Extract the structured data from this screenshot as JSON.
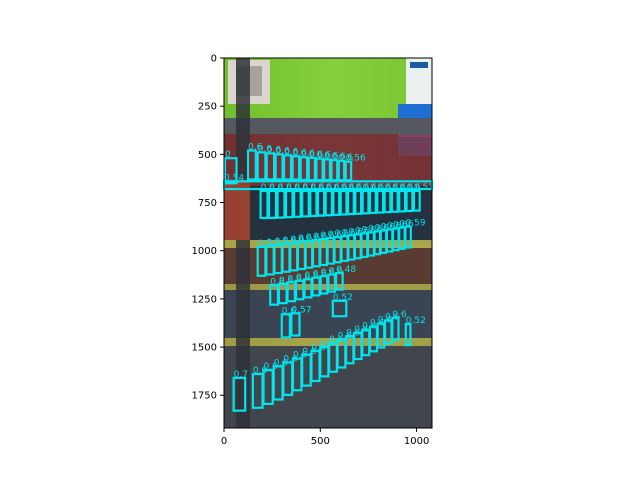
{
  "figure": {
    "colors": {
      "box": "#00e5ee",
      "label": "#00e5ee",
      "wall_green": "#7fc83a",
      "shelf_dark": "#3a3f45"
    },
    "image_desc_hidden": "",
    "axes": {
      "x": {
        "min": 0,
        "max": 1080,
        "ticks": [
          "0",
          "500",
          "1000"
        ],
        "tick_values": [
          0,
          500,
          1000
        ]
      },
      "y": {
        "min": 0,
        "max": 1920,
        "inverted": true,
        "ticks": [
          "0",
          "250",
          "500",
          "750",
          "1000",
          "1250",
          "1500",
          "1750"
        ],
        "tick_values": [
          0,
          250,
          500,
          750,
          1000,
          1250,
          1500,
          1750
        ]
      }
    },
    "detections": [
      {
        "x": 5,
        "y": 520,
        "w": 60,
        "h": 130,
        "label": "0"
      },
      {
        "x": 125,
        "y": 480,
        "w": 40,
        "h": 150,
        "label": "0.6"
      },
      {
        "x": 175,
        "y": 490,
        "w": 40,
        "h": 140,
        "label": "0.6"
      },
      {
        "x": 222,
        "y": 495,
        "w": 38,
        "h": 135,
        "label": "0.6"
      },
      {
        "x": 268,
        "y": 500,
        "w": 36,
        "h": 130,
        "label": "0.6"
      },
      {
        "x": 312,
        "y": 505,
        "w": 36,
        "h": 125,
        "label": "0.6"
      },
      {
        "x": 356,
        "y": 510,
        "w": 34,
        "h": 120,
        "label": "0.6"
      },
      {
        "x": 398,
        "y": 515,
        "w": 34,
        "h": 118,
        "label": "0.6"
      },
      {
        "x": 440,
        "y": 518,
        "w": 32,
        "h": 116,
        "label": "0.6"
      },
      {
        "x": 480,
        "y": 522,
        "w": 32,
        "h": 112,
        "label": "0.6"
      },
      {
        "x": 520,
        "y": 526,
        "w": 30,
        "h": 108,
        "label": "0.6"
      },
      {
        "x": 558,
        "y": 530,
        "w": 30,
        "h": 104,
        "label": "0.6"
      },
      {
        "x": 596,
        "y": 534,
        "w": 28,
        "h": 100,
        "label": "0.6"
      },
      {
        "x": 632,
        "y": 538,
        "w": 28,
        "h": 96,
        "label": "0.56"
      },
      {
        "x": 0,
        "y": 640,
        "w": 1080,
        "h": 40,
        "label": "0.54"
      },
      {
        "x": 190,
        "y": 690,
        "w": 36,
        "h": 140,
        "label": "0.6"
      },
      {
        "x": 234,
        "y": 690,
        "w": 36,
        "h": 140,
        "label": "0.6"
      },
      {
        "x": 278,
        "y": 690,
        "w": 36,
        "h": 138,
        "label": "0.6"
      },
      {
        "x": 322,
        "y": 690,
        "w": 34,
        "h": 136,
        "label": "0.6"
      },
      {
        "x": 364,
        "y": 690,
        "w": 34,
        "h": 134,
        "label": "0.6"
      },
      {
        "x": 406,
        "y": 690,
        "w": 34,
        "h": 132,
        "label": "0.6"
      },
      {
        "x": 448,
        "y": 690,
        "w": 32,
        "h": 130,
        "label": "0.6"
      },
      {
        "x": 488,
        "y": 690,
        "w": 32,
        "h": 128,
        "label": "0.6"
      },
      {
        "x": 528,
        "y": 690,
        "w": 32,
        "h": 126,
        "label": "0.6"
      },
      {
        "x": 568,
        "y": 690,
        "w": 30,
        "h": 124,
        "label": "0.6"
      },
      {
        "x": 606,
        "y": 690,
        "w": 30,
        "h": 122,
        "label": "0.6"
      },
      {
        "x": 644,
        "y": 690,
        "w": 30,
        "h": 120,
        "label": "0.6"
      },
      {
        "x": 682,
        "y": 690,
        "w": 30,
        "h": 118,
        "label": "0.6"
      },
      {
        "x": 720,
        "y": 690,
        "w": 30,
        "h": 116,
        "label": "0.6"
      },
      {
        "x": 758,
        "y": 690,
        "w": 30,
        "h": 114,
        "label": "0.6"
      },
      {
        "x": 796,
        "y": 690,
        "w": 30,
        "h": 112,
        "label": "0.6"
      },
      {
        "x": 834,
        "y": 690,
        "w": 30,
        "h": 110,
        "label": "0.6"
      },
      {
        "x": 872,
        "y": 690,
        "w": 30,
        "h": 108,
        "label": "0.6"
      },
      {
        "x": 910,
        "y": 690,
        "w": 30,
        "h": 106,
        "label": "0.6"
      },
      {
        "x": 948,
        "y": 690,
        "w": 30,
        "h": 104,
        "label": "0.6"
      },
      {
        "x": 986,
        "y": 690,
        "w": 30,
        "h": 102,
        "label": "0.53"
      },
      {
        "x": 175,
        "y": 980,
        "w": 40,
        "h": 150,
        "label": "0.6"
      },
      {
        "x": 220,
        "y": 975,
        "w": 38,
        "h": 148,
        "label": "0.6"
      },
      {
        "x": 262,
        "y": 970,
        "w": 38,
        "h": 146,
        "label": "0.6"
      },
      {
        "x": 304,
        "y": 965,
        "w": 36,
        "h": 144,
        "label": "0.6"
      },
      {
        "x": 344,
        "y": 960,
        "w": 36,
        "h": 142,
        "label": "0.6"
      },
      {
        "x": 384,
        "y": 955,
        "w": 36,
        "h": 140,
        "label": "0.6"
      },
      {
        "x": 424,
        "y": 950,
        "w": 34,
        "h": 138,
        "label": "0.6"
      },
      {
        "x": 462,
        "y": 945,
        "w": 34,
        "h": 136,
        "label": "0.6"
      },
      {
        "x": 500,
        "y": 940,
        "w": 34,
        "h": 134,
        "label": "0.6"
      },
      {
        "x": 538,
        "y": 935,
        "w": 32,
        "h": 132,
        "label": "0.6"
      },
      {
        "x": 574,
        "y": 930,
        "w": 32,
        "h": 130,
        "label": "0.6"
      },
      {
        "x": 610,
        "y": 925,
        "w": 32,
        "h": 128,
        "label": "0.6"
      },
      {
        "x": 646,
        "y": 920,
        "w": 30,
        "h": 126,
        "label": "0.6"
      },
      {
        "x": 680,
        "y": 915,
        "w": 30,
        "h": 124,
        "label": "0.6"
      },
      {
        "x": 714,
        "y": 910,
        "w": 30,
        "h": 122,
        "label": "0.6"
      },
      {
        "x": 748,
        "y": 905,
        "w": 30,
        "h": 120,
        "label": "0.6"
      },
      {
        "x": 782,
        "y": 900,
        "w": 28,
        "h": 118,
        "label": "0.6"
      },
      {
        "x": 814,
        "y": 895,
        "w": 28,
        "h": 116,
        "label": "0.6"
      },
      {
        "x": 846,
        "y": 890,
        "w": 28,
        "h": 114,
        "label": "0.6"
      },
      {
        "x": 878,
        "y": 885,
        "w": 28,
        "h": 112,
        "label": "0.6"
      },
      {
        "x": 910,
        "y": 880,
        "w": 28,
        "h": 110,
        "label": "0.6"
      },
      {
        "x": 942,
        "y": 875,
        "w": 28,
        "h": 108,
        "label": "0.59"
      },
      {
        "x": 240,
        "y": 1180,
        "w": 40,
        "h": 100,
        "label": "0.6"
      },
      {
        "x": 285,
        "y": 1172,
        "w": 40,
        "h": 100,
        "label": "0.6"
      },
      {
        "x": 330,
        "y": 1164,
        "w": 38,
        "h": 98,
        "label": "0.6"
      },
      {
        "x": 374,
        "y": 1156,
        "w": 38,
        "h": 96,
        "label": "0.6"
      },
      {
        "x": 418,
        "y": 1148,
        "w": 36,
        "h": 94,
        "label": "0.6"
      },
      {
        "x": 460,
        "y": 1140,
        "w": 36,
        "h": 92,
        "label": "0.6"
      },
      {
        "x": 502,
        "y": 1132,
        "w": 34,
        "h": 90,
        "label": "0.6"
      },
      {
        "x": 542,
        "y": 1124,
        "w": 34,
        "h": 88,
        "label": "0.6"
      },
      {
        "x": 582,
        "y": 1116,
        "w": 34,
        "h": 86,
        "label": "0.48"
      },
      {
        "x": 300,
        "y": 1330,
        "w": 42,
        "h": 120,
        "label": "0.6"
      },
      {
        "x": 350,
        "y": 1325,
        "w": 42,
        "h": 115,
        "label": "0.57"
      },
      {
        "x": 565,
        "y": 1260,
        "w": 70,
        "h": 80,
        "label": "0.52"
      },
      {
        "x": 50,
        "y": 1660,
        "w": 60,
        "h": 170,
        "label": "0.7"
      },
      {
        "x": 150,
        "y": 1640,
        "w": 50,
        "h": 175,
        "label": "0.6"
      },
      {
        "x": 205,
        "y": 1620,
        "w": 48,
        "h": 175,
        "label": "0.6"
      },
      {
        "x": 258,
        "y": 1600,
        "w": 46,
        "h": 172,
        "label": "0.6"
      },
      {
        "x": 308,
        "y": 1580,
        "w": 46,
        "h": 168,
        "label": "0.6"
      },
      {
        "x": 358,
        "y": 1560,
        "w": 44,
        "h": 164,
        "label": "0.6"
      },
      {
        "x": 406,
        "y": 1540,
        "w": 44,
        "h": 160,
        "label": "0.6"
      },
      {
        "x": 454,
        "y": 1520,
        "w": 42,
        "h": 156,
        "label": "0.6"
      },
      {
        "x": 500,
        "y": 1500,
        "w": 42,
        "h": 152,
        "label": "0.6"
      },
      {
        "x": 546,
        "y": 1480,
        "w": 40,
        "h": 148,
        "label": "0.6"
      },
      {
        "x": 590,
        "y": 1462,
        "w": 40,
        "h": 144,
        "label": "0.6"
      },
      {
        "x": 634,
        "y": 1444,
        "w": 38,
        "h": 140,
        "label": "0.6"
      },
      {
        "x": 676,
        "y": 1426,
        "w": 38,
        "h": 136,
        "label": "0.6"
      },
      {
        "x": 718,
        "y": 1410,
        "w": 36,
        "h": 132,
        "label": "0.6"
      },
      {
        "x": 758,
        "y": 1394,
        "w": 36,
        "h": 128,
        "label": "0.6"
      },
      {
        "x": 798,
        "y": 1378,
        "w": 34,
        "h": 124,
        "label": "0.6"
      },
      {
        "x": 836,
        "y": 1362,
        "w": 34,
        "h": 120,
        "label": "0.6"
      },
      {
        "x": 874,
        "y": 1348,
        "w": 32,
        "h": 116,
        "label": "0.6"
      },
      {
        "x": 944,
        "y": 1380,
        "w": 24,
        "h": 110,
        "label": "0.52"
      }
    ]
  }
}
